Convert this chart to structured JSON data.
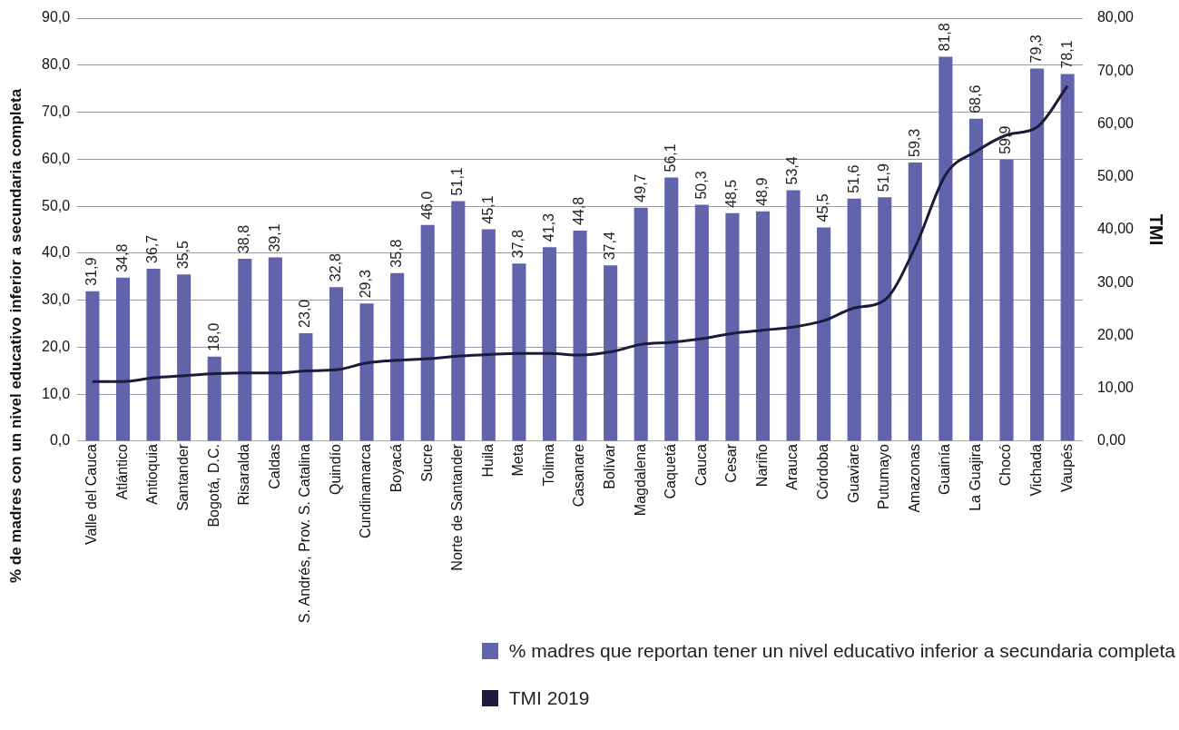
{
  "chart_data": {
    "type": "bar",
    "ylabel": "% de madres con un nivel educativo inferior a secundaria completa",
    "y2label": "TMI",
    "categories": [
      "Valle del Cauca",
      "Atlántico",
      "Antioquia",
      "Santander",
      "Bogotá, D.C.",
      "Risaralda",
      "Caldas",
      "S. Andrés, Prov. S. Catalina",
      "Quindío",
      "Cundinamarca",
      "Boyacá",
      "Sucre",
      "Norte de Santander",
      "Huila",
      "Meta",
      "Tolima",
      "Casanare",
      "Bolívar",
      "Magdalena",
      "Caquetá",
      "Cauca",
      "Cesar",
      "Nariño",
      "Arauca",
      "Córdoba",
      "Guaviare",
      "Putumayo",
      "Amazonas",
      "Guainía",
      "La Guajira",
      "Chocó",
      "Vichada",
      "Vaupés"
    ],
    "series": [
      {
        "name": "% madres que reportan tener un nivel educativo inferior a secundaria completa",
        "color": "#6264ab",
        "values": [
          31.9,
          34.8,
          36.7,
          35.5,
          18.0,
          38.8,
          39.1,
          23.0,
          32.8,
          29.3,
          35.8,
          46.0,
          51.1,
          45.1,
          37.8,
          41.3,
          44.8,
          37.4,
          49.7,
          56.1,
          50.3,
          48.5,
          48.9,
          53.4,
          45.5,
          51.6,
          51.9,
          59.3,
          81.8,
          68.6,
          59.9,
          79.3,
          78.1
        ],
        "value_labels": [
          "31,9",
          "34,8",
          "36,7",
          "35,5",
          "18,0",
          "38,8",
          "39,1",
          "23,0",
          "32,8",
          "29,3",
          "35,8",
          "46,0",
          "51,1",
          "45,1",
          "37,8",
          "41,3",
          "44,8",
          "37,4",
          "49,7",
          "56,1",
          "50,3",
          "48,5",
          "48,9",
          "53,4",
          "45,5",
          "51,6",
          "51,9",
          "59,3",
          "81,8",
          "68,6",
          "59,9",
          "79,3",
          "78,1"
        ]
      },
      {
        "type": "line",
        "name": "TMI 2019",
        "color": "#1e1a3c",
        "axis": "y2",
        "values": [
          11.3,
          11.3,
          12.0,
          12.4,
          12.8,
          12.9,
          12.9,
          13.3,
          13.5,
          14.8,
          15.3,
          15.6,
          16.1,
          16.4,
          16.6,
          16.6,
          16.3,
          16.9,
          18.3,
          18.7,
          19.4,
          20.4,
          21.0,
          21.6,
          22.8,
          25.2,
          26.7,
          36.7,
          50.4,
          54.8,
          57.9,
          59.4,
          67.2
        ]
      }
    ],
    "ylim": [
      0,
      90
    ],
    "yticks": [
      {
        "value": 0,
        "label": "0,0"
      },
      {
        "value": 10,
        "label": "10,0"
      },
      {
        "value": 20,
        "label": "20,0"
      },
      {
        "value": 30,
        "label": "30,0"
      },
      {
        "value": 40,
        "label": "40,0"
      },
      {
        "value": 50,
        "label": "50,0"
      },
      {
        "value": 60,
        "label": "60,0"
      },
      {
        "value": 70,
        "label": "70,0"
      },
      {
        "value": 80,
        "label": "80,0"
      },
      {
        "value": 90,
        "label": "90,0"
      }
    ],
    "y2lim": [
      0,
      80
    ],
    "y2ticks": [
      {
        "value": 0,
        "label": "0,00"
      },
      {
        "value": 10,
        "label": "10,00"
      },
      {
        "value": 20,
        "label": "20,00"
      },
      {
        "value": 30,
        "label": "30,00"
      },
      {
        "value": 40,
        "label": "40,00"
      },
      {
        "value": 50,
        "label": "50,00"
      },
      {
        "value": 60,
        "label": "60,00"
      },
      {
        "value": 70,
        "label": "70,00"
      },
      {
        "value": 80,
        "label": "80,00"
      }
    ],
    "grid": "y",
    "legend": "bottom right",
    "marker": "none",
    "line_style": "solid"
  }
}
